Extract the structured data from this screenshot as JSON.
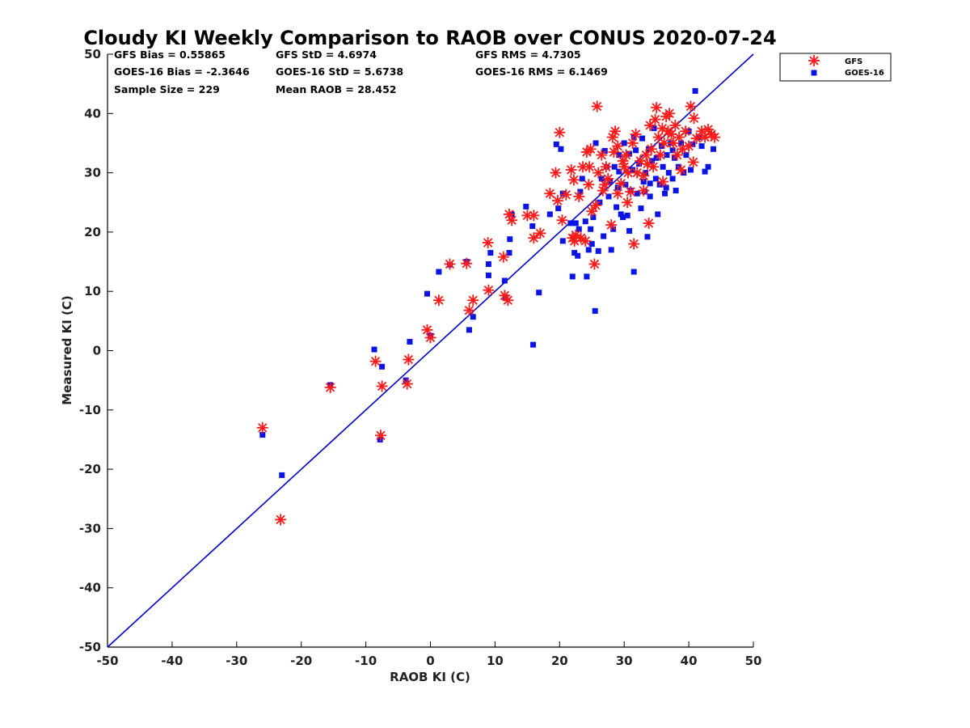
{
  "chart_data": {
    "type": "scatter",
    "title": "Cloudy KI Weekly Comparison to RAOB over CONUS 2020-07-24",
    "xlabel": "RAOB KI (C)",
    "ylabel": "Measured KI (C)",
    "xlim": [
      -50,
      50
    ],
    "ylim": [
      -50,
      50
    ],
    "xticks": [
      "-50",
      "-40",
      "-30",
      "-20",
      "-10",
      "0",
      "10",
      "20",
      "30",
      "40",
      "50"
    ],
    "yticks": [
      "50",
      "40",
      "30",
      "20",
      "10",
      "0",
      "-10",
      "-20",
      "-30",
      "-40",
      "-50"
    ],
    "grid": false,
    "legend_position": "outside-top-right",
    "stats": [
      [
        "GFS Bias = 0.55865",
        "GFS StD = 4.6974",
        "GFS RMS = 4.7305"
      ],
      [
        "GOES-16 Bias = -2.3646",
        "GOES-16 StD = 5.6738",
        "GOES-16 RMS = 6.1469"
      ],
      [
        "Sample Size = 229",
        "Mean RAOB = 28.452"
      ]
    ],
    "reference_line": {
      "from": [
        -50,
        -50
      ],
      "to": [
        50,
        50
      ],
      "color": "#0000cc"
    },
    "series": [
      {
        "name": "GFS",
        "marker": "asterisk",
        "color": "#ff1a1a",
        "points": [
          [
            -26,
            -13
          ],
          [
            -23.2,
            -28.5
          ],
          [
            -15.5,
            -6.2
          ],
          [
            -8.5,
            -1.8
          ],
          [
            -7.7,
            -14.3
          ],
          [
            -7.5,
            -6
          ],
          [
            -3.6,
            -5.6
          ],
          [
            -3.4,
            -1.5
          ],
          [
            -0.5,
            3.5
          ],
          [
            0,
            2.2
          ],
          [
            1.3,
            8.5
          ],
          [
            3,
            14.6
          ],
          [
            5.6,
            14.7
          ],
          [
            6,
            6.8
          ],
          [
            6.6,
            8.5
          ],
          [
            8.9,
            18.2
          ],
          [
            9,
            10.2
          ],
          [
            11.3,
            15.8
          ],
          [
            11.5,
            9.3
          ],
          [
            12,
            8.5
          ],
          [
            12.2,
            23
          ],
          [
            12.6,
            22
          ],
          [
            15,
            22.8
          ],
          [
            16,
            19
          ],
          [
            16,
            22.8
          ],
          [
            17,
            19.8
          ],
          [
            18.5,
            26.5
          ],
          [
            19.4,
            30
          ],
          [
            19.7,
            25.3
          ],
          [
            20,
            36.8
          ],
          [
            20.4,
            22
          ],
          [
            21,
            26.3
          ],
          [
            21.8,
            30.5
          ],
          [
            22,
            19
          ],
          [
            22.2,
            28.8
          ],
          [
            22.3,
            18.5
          ],
          [
            22.5,
            19.5
          ],
          [
            23,
            26
          ],
          [
            23.3,
            19
          ],
          [
            23.6,
            31
          ],
          [
            24,
            18.5
          ],
          [
            24.2,
            33.5
          ],
          [
            24.5,
            28
          ],
          [
            24.6,
            31
          ],
          [
            24.8,
            34
          ],
          [
            25,
            23.5
          ],
          [
            25.4,
            14.6
          ],
          [
            25.6,
            24.5
          ],
          [
            25.8,
            41.2
          ],
          [
            26,
            30
          ],
          [
            26.5,
            33
          ],
          [
            27,
            28
          ],
          [
            27.5,
            29
          ],
          [
            28,
            21.2
          ],
          [
            28.2,
            36
          ],
          [
            28.4,
            33.5
          ],
          [
            28.6,
            37
          ],
          [
            29,
            26.5
          ],
          [
            29.5,
            28.2
          ],
          [
            29.8,
            32
          ],
          [
            30,
            31
          ],
          [
            30.3,
            33
          ],
          [
            30.6,
            30
          ],
          [
            31,
            26.8
          ],
          [
            31.3,
            35
          ],
          [
            31.5,
            18
          ],
          [
            31.8,
            36.5
          ],
          [
            32,
            30
          ],
          [
            32.5,
            32
          ],
          [
            33,
            29.5
          ],
          [
            33.4,
            33
          ],
          [
            33.8,
            21.5
          ],
          [
            34,
            38
          ],
          [
            34.2,
            34
          ],
          [
            34.5,
            31
          ],
          [
            34.8,
            39
          ],
          [
            35,
            41
          ],
          [
            35.3,
            36
          ],
          [
            35.6,
            33
          ],
          [
            35.9,
            37.5
          ],
          [
            36.2,
            35
          ],
          [
            36.5,
            39.5
          ],
          [
            36.8,
            37
          ],
          [
            37,
            40
          ],
          [
            37.3,
            36.5
          ],
          [
            37.6,
            35
          ],
          [
            37.9,
            38
          ],
          [
            38.2,
            33
          ],
          [
            38.5,
            36
          ],
          [
            39,
            34
          ],
          [
            39.5,
            37
          ],
          [
            40,
            34.5
          ],
          [
            40.3,
            41.2
          ],
          [
            40.8,
            39.2
          ],
          [
            40.7,
            31.8
          ],
          [
            41.2,
            35.8
          ],
          [
            42,
            37
          ],
          [
            42.5,
            36
          ],
          [
            43,
            37.3
          ],
          [
            43.5,
            36.5
          ],
          [
            44,
            36
          ],
          [
            33,
            27
          ],
          [
            30.5,
            25
          ],
          [
            29,
            34.5
          ],
          [
            27.2,
            31
          ],
          [
            26.7,
            27
          ],
          [
            33.6,
            31.5
          ],
          [
            36,
            28.5
          ],
          [
            38.8,
            30.5
          ]
        ]
      },
      {
        "name": "GOES-16",
        "marker": "square",
        "color": "#0a14e6",
        "points": [
          [
            -26,
            -14.2
          ],
          [
            -23,
            -21
          ],
          [
            -15.5,
            -5.8
          ],
          [
            -8.7,
            0.2
          ],
          [
            -7.8,
            -15
          ],
          [
            -7.5,
            -2.7
          ],
          [
            -3.8,
            -5
          ],
          [
            -3.2,
            1.5
          ],
          [
            -0.5,
            9.6
          ],
          [
            0,
            2.5
          ],
          [
            1.3,
            13.3
          ],
          [
            3,
            14.5
          ],
          [
            5.6,
            15
          ],
          [
            6,
            3.5
          ],
          [
            6.6,
            5.7
          ],
          [
            9,
            12.7
          ],
          [
            9,
            14.6
          ],
          [
            9.3,
            16.5
          ],
          [
            11.5,
            11.8
          ],
          [
            11.6,
            9
          ],
          [
            12.2,
            16.5
          ],
          [
            12.3,
            18.8
          ],
          [
            12.6,
            23
          ],
          [
            14.8,
            24.3
          ],
          [
            15.8,
            21
          ],
          [
            15.9,
            1
          ],
          [
            16.8,
            9.8
          ],
          [
            18.5,
            23
          ],
          [
            19.5,
            34.8
          ],
          [
            19.8,
            24
          ],
          [
            20.2,
            34
          ],
          [
            20.5,
            26.5
          ],
          [
            20.5,
            18.5
          ],
          [
            21.7,
            21.5
          ],
          [
            22,
            12.5
          ],
          [
            22.3,
            16.5
          ],
          [
            22.5,
            21.5
          ],
          [
            22.8,
            16
          ],
          [
            23,
            20.5
          ],
          [
            23.2,
            26.8
          ],
          [
            23.5,
            29
          ],
          [
            24,
            21.8
          ],
          [
            24.2,
            12.5
          ],
          [
            24.5,
            17
          ],
          [
            24.8,
            20.5
          ],
          [
            25,
            18
          ],
          [
            25.2,
            22.5
          ],
          [
            25.5,
            6.7
          ],
          [
            25.6,
            35
          ],
          [
            26,
            16.8
          ],
          [
            26.2,
            25
          ],
          [
            26.5,
            29
          ],
          [
            26.8,
            19.3
          ],
          [
            27,
            33.7
          ],
          [
            27.3,
            31
          ],
          [
            27.6,
            26
          ],
          [
            28,
            17
          ],
          [
            28.3,
            20.5
          ],
          [
            28.5,
            31
          ],
          [
            28.8,
            24.2
          ],
          [
            29,
            27.5
          ],
          [
            29.2,
            33
          ],
          [
            29.5,
            23
          ],
          [
            29.8,
            22.5
          ],
          [
            30,
            35
          ],
          [
            30.2,
            28
          ],
          [
            30.5,
            22.8
          ],
          [
            30.8,
            20.2
          ],
          [
            31,
            27
          ],
          [
            31.3,
            30.5
          ],
          [
            31.5,
            13.3
          ],
          [
            31.8,
            33.8
          ],
          [
            32,
            26.5
          ],
          [
            32.3,
            31.5
          ],
          [
            32.6,
            24
          ],
          [
            33,
            28.5
          ],
          [
            33.3,
            30
          ],
          [
            33.6,
            19.2
          ],
          [
            33.8,
            34
          ],
          [
            34,
            26
          ],
          [
            34.3,
            32
          ],
          [
            34.6,
            37.5
          ],
          [
            34.9,
            29
          ],
          [
            35.2,
            23
          ],
          [
            35.5,
            28
          ],
          [
            35.8,
            34.5
          ],
          [
            36,
            31
          ],
          [
            36.3,
            26.5
          ],
          [
            36.6,
            33
          ],
          [
            36.9,
            30
          ],
          [
            37.2,
            35
          ],
          [
            37.5,
            29
          ],
          [
            37.8,
            32.5
          ],
          [
            38,
            27
          ],
          [
            38.4,
            31
          ],
          [
            38.8,
            35
          ],
          [
            39.2,
            30
          ],
          [
            39.6,
            33
          ],
          [
            40,
            37
          ],
          [
            40.3,
            30.5
          ],
          [
            40.6,
            34.8
          ],
          [
            41,
            43.8
          ],
          [
            41.5,
            36
          ],
          [
            42,
            34.5
          ],
          [
            42.5,
            30.2
          ],
          [
            43,
            31
          ],
          [
            43.8,
            34
          ],
          [
            31.5,
            36
          ],
          [
            30.8,
            33.2
          ],
          [
            32.8,
            35.8
          ],
          [
            34,
            28.2
          ],
          [
            35,
            32.5
          ],
          [
            36.5,
            27.5
          ],
          [
            29.2,
            30.2
          ],
          [
            27.8,
            28.5
          ],
          [
            33.2,
            26.8
          ],
          [
            37.5,
            33.8
          ]
        ]
      }
    ]
  }
}
